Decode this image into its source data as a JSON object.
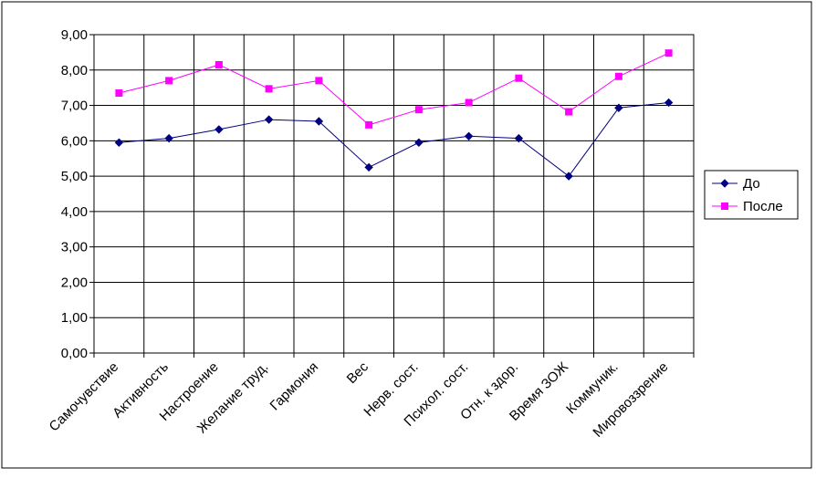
{
  "chart_data": {
    "type": "line",
    "categories": [
      "Самочувствие",
      "Активность",
      "Настроение",
      "Желание труд.",
      "Гармония",
      "Вес",
      "Нерв. сост.",
      "Психол. сост.",
      "Отн. к здор.",
      "Время ЗОЖ",
      "Коммуник.",
      "Мировоззрение"
    ],
    "series": [
      {
        "name": "До",
        "color": "#000080",
        "marker": "diamond",
        "values": [
          5.95,
          6.07,
          6.32,
          6.6,
          6.55,
          5.25,
          5.95,
          6.13,
          6.07,
          5.0,
          6.93,
          7.08
        ]
      },
      {
        "name": "После",
        "color": "#ff00ff",
        "marker": "square",
        "values": [
          7.35,
          7.7,
          8.15,
          7.47,
          7.7,
          6.45,
          6.88,
          7.08,
          7.77,
          6.82,
          7.82,
          8.48
        ]
      }
    ],
    "ylim": [
      0,
      9
    ],
    "y_ticks": [
      "0,00",
      "1,00",
      "2,00",
      "3,00",
      "4,00",
      "5,00",
      "6,00",
      "7,00",
      "8,00",
      "9,00"
    ],
    "title": "",
    "xlabel": "",
    "ylabel": "",
    "grid": true,
    "legend_position": "right"
  }
}
